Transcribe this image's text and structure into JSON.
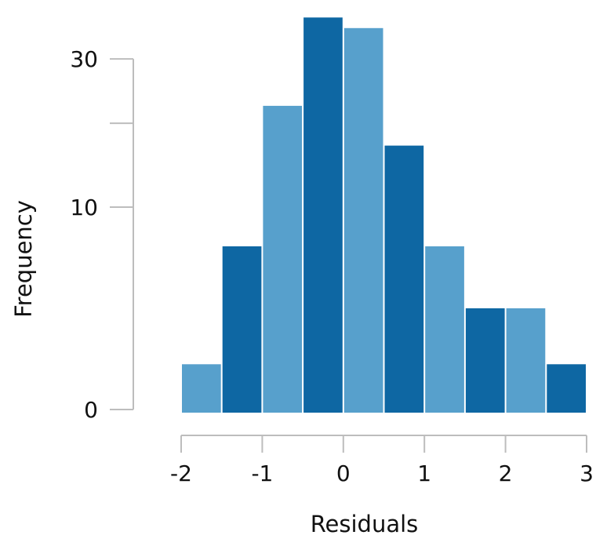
{
  "chart_data": {
    "type": "bar",
    "title": "",
    "xlabel": "Residuals",
    "ylabel": "Frequency",
    "bin_edges": [
      -2,
      -1.5,
      -1,
      -0.5,
      0,
      0.5,
      1,
      1.5,
      2,
      2.5,
      3
    ],
    "values": [
      0.5,
      6.5,
      22.5,
      37.5,
      35.5,
      17,
      6.5,
      2.5,
      2.5,
      0.5
    ],
    "y_scale": "sqrt",
    "ylim": [
      0,
      38
    ],
    "xlim": [
      -2,
      3
    ],
    "x_ticks": [
      {
        "value": -2,
        "label": "-2"
      },
      {
        "value": -1,
        "label": "-1"
      },
      {
        "value": 0,
        "label": "0"
      },
      {
        "value": 1,
        "label": "1"
      },
      {
        "value": 2,
        "label": "2"
      },
      {
        "value": 3,
        "label": "3"
      }
    ],
    "y_ticks": [
      {
        "value": 0,
        "label": "0"
      },
      {
        "value": 10,
        "label": "10"
      },
      {
        "value": 20,
        "label": ""
      },
      {
        "value": 30,
        "label": "30"
      }
    ],
    "colors": [
      "#57a0cc",
      "#0e67a3"
    ],
    "grid": false,
    "legend": "none"
  }
}
